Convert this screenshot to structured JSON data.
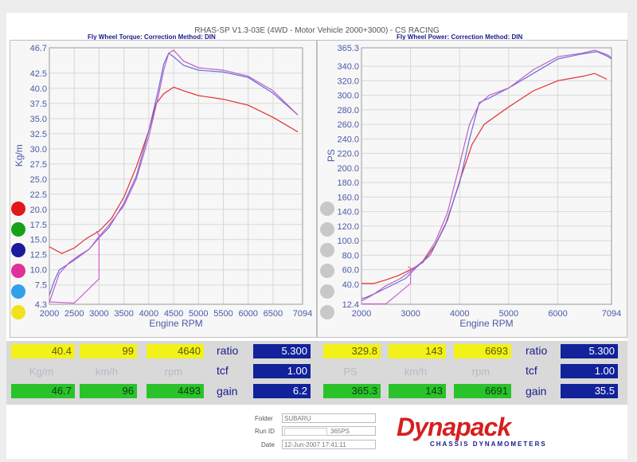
{
  "header": {
    "title": "RHAS-SP V1.3-03E  (4WD - Motor Vehicle 2000+3000) - CS RACING",
    "left_sub": "Fly Wheel Torque:      Correction Method: DIN",
    "right_sub": "Fly Wheel Power:      Correction Method: DIN"
  },
  "chart_data": [
    {
      "type": "line",
      "title": "Fly Wheel Torque",
      "xlabel": "Engine RPM",
      "ylabel": "Kg/m",
      "xlim": [
        2000,
        7094
      ],
      "ylim": [
        4.3,
        46.7
      ],
      "x_ticks": [
        "2000",
        "2500",
        "3000",
        "3500",
        "4000",
        "4500",
        "5000",
        "5500",
        "6000",
        "6500",
        "7094"
      ],
      "y_ticks": [
        "46.7",
        "42.5",
        "40.0",
        "37.5",
        "35.0",
        "32.5",
        "30.0",
        "27.5",
        "25.0",
        "22.5",
        "20.0",
        "17.5",
        "15.0",
        "12.5",
        "10.0",
        "7.5",
        "4.3"
      ],
      "series": [
        {
          "color": "#e03030",
          "x": [
            2000,
            2250,
            2500,
            2750,
            3000,
            3250,
            3500,
            3750,
            4000,
            4150,
            4300,
            4500,
            4700,
            5000,
            5500,
            6000,
            6500,
            7000
          ],
          "y": [
            13.8,
            12.7,
            13.6,
            15.2,
            16.4,
            18.5,
            22.0,
            27.0,
            33.0,
            37.5,
            39.1,
            40.2,
            39.6,
            38.8,
            38.2,
            37.2,
            35.2,
            32.8
          ]
        },
        {
          "color": "#6a6ae0",
          "x": [
            2000,
            2100,
            2200,
            2500,
            2800,
            3000,
            3200,
            3500,
            3750,
            4000,
            4200,
            4300,
            4400,
            4500,
            4700,
            5000,
            5500,
            6000,
            6500,
            7000
          ],
          "y": [
            5.8,
            8.2,
            10.0,
            11.6,
            13.4,
            15.3,
            17.0,
            21.0,
            25.5,
            33.0,
            40.0,
            44.0,
            45.8,
            45.2,
            43.8,
            43.0,
            42.7,
            41.8,
            39.2,
            35.6
          ]
        },
        {
          "color": "#c060c0",
          "x": [
            2000,
            2100,
            2200,
            2400,
            2600,
            2800,
            3000,
            3200,
            3500,
            3750,
            4000,
            4200,
            4300,
            4400,
            4500,
            4700,
            5000,
            5500,
            6000,
            6500,
            7000
          ],
          "y": [
            4.6,
            7.0,
            9.4,
            11.2,
            12.4,
            13.4,
            15.5,
            17.4,
            20.6,
            25.0,
            32.0,
            39.0,
            43.0,
            45.8,
            46.3,
            44.5,
            43.4,
            43.0,
            42.0,
            39.6,
            35.6
          ]
        },
        {
          "color": "#d060d0",
          "x": [
            2000,
            2500,
            3000,
            3000,
            2950
          ],
          "y": [
            4.7,
            4.5,
            8.5,
            15.7,
            16.4
          ]
        }
      ]
    },
    {
      "type": "line",
      "title": "Fly Wheel Power",
      "xlabel": "Engine RPM",
      "ylabel": "PS",
      "xlim": [
        2000,
        7094
      ],
      "ylim": [
        12.4,
        365.3
      ],
      "x_ticks": [
        "2000",
        "3000",
        "4000",
        "5000",
        "6000",
        "7094"
      ],
      "y_ticks": [
        "365.3",
        "340.0",
        "320.0",
        "300.0",
        "280.0",
        "260.0",
        "240.0",
        "220.0",
        "200.0",
        "180.0",
        "160.0",
        "140.0",
        "120.0",
        "100.0",
        "80.0",
        "60.0",
        "40.0",
        "12.4"
      ],
      "series": [
        {
          "color": "#e03030",
          "x": [
            2000,
            2250,
            2500,
            2750,
            3000,
            3250,
            3500,
            3750,
            4000,
            4250,
            4500,
            5000,
            5500,
            6000,
            6500,
            6750,
            7000
          ],
          "y": [
            41,
            41,
            46,
            52,
            60,
            70,
            94,
            128,
            182,
            232,
            260,
            284,
            306,
            320,
            326,
            330,
            322
          ]
        },
        {
          "color": "#6a6ae0",
          "x": [
            2000,
            2100,
            2300,
            2600,
            2900,
            3100,
            3400,
            3700,
            4000,
            4200,
            4400,
            4600,
            5000,
            5500,
            6000,
            6500,
            6800,
            7000,
            7094
          ],
          "y": [
            20,
            22,
            28,
            38,
            48,
            62,
            80,
            120,
            180,
            240,
            290,
            296,
            310,
            330,
            350,
            357,
            360,
            354,
            350
          ]
        },
        {
          "color": "#c060c0",
          "x": [
            2000,
            2200,
            2500,
            2800,
            3000,
            3250,
            3500,
            3750,
            4000,
            4200,
            4400,
            4600,
            5000,
            5500,
            6000,
            6500,
            6750,
            7000,
            7094
          ],
          "y": [
            17,
            24,
            38,
            48,
            58,
            72,
            98,
            138,
            205,
            260,
            288,
            300,
            310,
            335,
            353,
            358,
            362,
            356,
            352
          ]
        },
        {
          "color": "#d060d0",
          "x": [
            2000,
            2500,
            3000,
            3000,
            2950
          ],
          "y": [
            13,
            13,
            41,
            62,
            64
          ]
        }
      ]
    }
  ],
  "left_dot_colors": [
    "#e01818",
    "#18a018",
    "#1a1a9c",
    "#e0309a",
    "#30a0e8",
    "#f2e21a"
  ],
  "readout_left": {
    "row1": {
      "kgm": "40.4",
      "kmh": "99",
      "rpm": "4640"
    },
    "row2": {
      "kgm": "Kg/m",
      "kmh": "km/h",
      "rpm": "rpm"
    },
    "row3": {
      "kgm": "46.7",
      "kmh": "96",
      "rpm": "4493"
    },
    "labels": {
      "ratio": "ratio",
      "tcf": "tcf",
      "gain": "gain"
    },
    "values": {
      "ratio": "5.300",
      "tcf": "1.00",
      "gain": "6.2"
    }
  },
  "readout_right": {
    "row1": {
      "ps": "329.8",
      "kmh": "143",
      "rpm": "6693"
    },
    "row2": {
      "ps": "PS",
      "kmh": "km/h",
      "rpm": "rpm"
    },
    "row3": {
      "ps": "365.3",
      "kmh": "143",
      "rpm": "6691"
    },
    "labels": {
      "ratio": "ratio",
      "tcf": "tcf",
      "gain": "gain"
    },
    "values": {
      "ratio": "5.300",
      "tcf": "1.00",
      "gain": "35.5"
    }
  },
  "footer": {
    "folder_label": "Folder",
    "folder_value": "SUBARU",
    "runid_label": "Run ID",
    "runid_value": "365PS",
    "date_label": "Date",
    "date_value": "12-Jun-2007  17:41:11"
  },
  "logo": {
    "name": "Dynapack",
    "tagline": "CHASSIS  DYNAMOMETERS"
  }
}
